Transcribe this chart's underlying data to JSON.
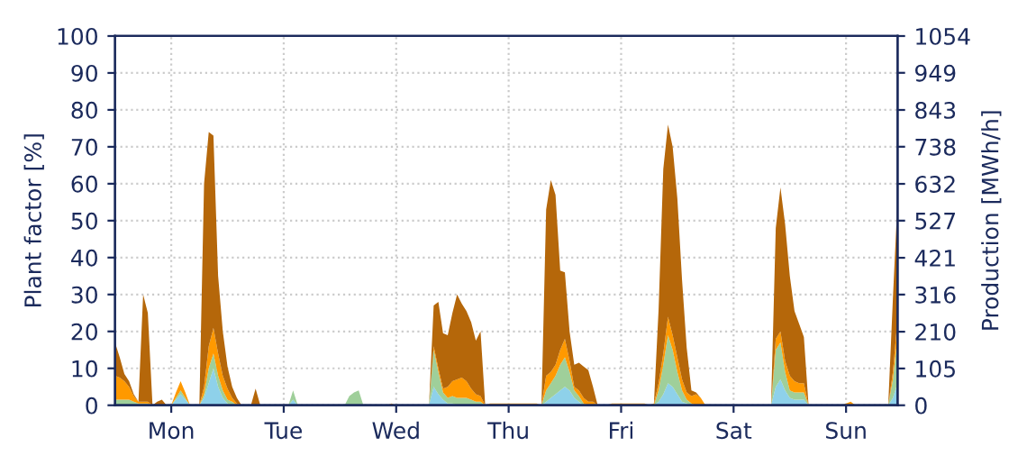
{
  "chart_data": {
    "type": "area",
    "stacked": true,
    "ylabel": "Plant factor [%]",
    "y2label": "Production [MWh/h]",
    "categories": [
      null,
      null,
      null,
      null,
      null,
      null,
      null,
      null,
      null,
      null,
      null,
      null,
      "Mon",
      null,
      null,
      null,
      null,
      null,
      null,
      null,
      null,
      null,
      null,
      null,
      null,
      null,
      null,
      null,
      null,
      null,
      null,
      null,
      null,
      null,
      null,
      null,
      "Tue",
      null,
      null,
      null,
      null,
      null,
      null,
      null,
      null,
      null,
      null,
      null,
      null,
      null,
      null,
      null,
      null,
      null,
      null,
      null,
      null,
      null,
      null,
      null,
      "Wed",
      null,
      null,
      null,
      null,
      null,
      null,
      null,
      null,
      null,
      null,
      null,
      null,
      null,
      null,
      null,
      null,
      null,
      null,
      null,
      null,
      null,
      null,
      null,
      "Thu",
      null,
      null,
      null,
      null,
      null,
      null,
      null,
      null,
      null,
      null,
      null,
      null,
      null,
      null,
      null,
      null,
      null,
      null,
      null,
      null,
      null,
      null,
      null,
      "Fri",
      null,
      null,
      null,
      null,
      null,
      null,
      null,
      null,
      null,
      null,
      null,
      null,
      null,
      null,
      null,
      null,
      null,
      null,
      null,
      null,
      null,
      null,
      null,
      "Sat",
      null,
      null,
      null,
      null,
      null,
      null,
      null,
      null,
      null,
      null,
      null,
      null,
      null,
      null,
      null,
      null,
      null,
      null,
      null,
      null,
      null,
      null,
      null,
      "Sun",
      null,
      null,
      null,
      null,
      null,
      null,
      null,
      null,
      null,
      null,
      null
    ],
    "series": [
      {
        "color": "#8ed1ea",
        "values": [
          0,
          0,
          0,
          0,
          0,
          0,
          0,
          0,
          0,
          0,
          0,
          0,
          0,
          1.5,
          3,
          1.5,
          0,
          0,
          0,
          2,
          6,
          10,
          5,
          2,
          0.5,
          0,
          0,
          0,
          0,
          0,
          0,
          0,
          0,
          0,
          0,
          0,
          0,
          0,
          1.5,
          0,
          0,
          0,
          0,
          0,
          0,
          0,
          0,
          0,
          0,
          0,
          0,
          0,
          0,
          0,
          0,
          0,
          0,
          0,
          0,
          0,
          0,
          0,
          0,
          0,
          0,
          0,
          0,
          0,
          5,
          3,
          1.5,
          0.5,
          0.5,
          0,
          0,
          0,
          0,
          0,
          0,
          0,
          0,
          0,
          0,
          0,
          0,
          0,
          0,
          0,
          0,
          0,
          0,
          0,
          1,
          2,
          3,
          4,
          5,
          4,
          2,
          1,
          0,
          0,
          0,
          0,
          0,
          0,
          0,
          0,
          0,
          0,
          0,
          0,
          0,
          0,
          0,
          0,
          1,
          3,
          6,
          5,
          3,
          1,
          0.5,
          0,
          0,
          0,
          0,
          0,
          0,
          0,
          0,
          0,
          0,
          0,
          0,
          0,
          0,
          0,
          0,
          0,
          0,
          5,
          7,
          4,
          2,
          1.5,
          1.5,
          1.5,
          0,
          0,
          0,
          0,
          0,
          0,
          0,
          0,
          0,
          0,
          0,
          0,
          0,
          0,
          0,
          0,
          0,
          0,
          2,
          6
        ]
      },
      {
        "color": "#9fcf9a",
        "values": [
          1.5,
          1.5,
          1.5,
          1.5,
          1,
          0.5,
          0.5,
          0.5,
          0,
          0,
          0,
          0,
          0,
          0.5,
          1,
          0.5,
          0,
          0,
          0,
          1,
          4,
          4,
          3,
          2,
          1,
          1,
          0,
          0,
          0,
          0,
          0,
          0,
          0,
          0,
          0,
          0,
          0,
          0,
          2.5,
          0,
          0,
          0,
          0,
          0,
          0,
          0,
          0,
          0,
          0,
          0,
          2.5,
          3.5,
          4,
          0,
          0,
          0,
          0,
          0,
          0,
          0,
          0,
          0,
          0,
          0,
          0,
          0,
          0,
          0,
          10,
          6,
          2,
          1.5,
          2,
          2,
          2,
          2,
          1.5,
          1,
          1,
          0,
          0,
          0,
          0,
          0,
          0,
          0,
          0,
          0,
          0,
          0,
          0,
          0,
          3,
          4,
          5,
          7,
          8,
          5,
          2,
          1.5,
          0.5,
          0,
          0,
          0,
          0,
          0,
          0,
          0,
          0,
          0,
          0,
          0,
          0,
          0,
          0,
          0,
          3,
          8,
          13,
          10,
          6,
          3,
          1,
          0.5,
          0,
          0,
          0,
          0,
          0,
          0,
          0,
          0,
          0,
          0,
          0,
          0,
          0,
          0,
          0,
          0,
          0,
          10,
          10,
          5,
          2,
          2,
          2,
          2,
          0,
          0,
          0,
          0,
          0,
          0,
          0,
          0,
          0,
          0,
          0,
          0,
          0,
          0,
          0,
          0,
          0,
          0,
          5,
          12.5
        ]
      },
      {
        "color": "#ff9900",
        "values": [
          6.5,
          6,
          5,
          3.5,
          1.5,
          0.5,
          0.5,
          0.5,
          0,
          0,
          0,
          0,
          0,
          1.5,
          2.5,
          1.5,
          0,
          0,
          0,
          2,
          6,
          7,
          6,
          4,
          3,
          1,
          0.5,
          0,
          0,
          0,
          0,
          0,
          0,
          0,
          0,
          0,
          0,
          0,
          0,
          0,
          0,
          0,
          0,
          0,
          0,
          0,
          0,
          0,
          0,
          0,
          0,
          0,
          0,
          0,
          0,
          0,
          0,
          0,
          0,
          0.5,
          0,
          0,
          0,
          0,
          0,
          0,
          0,
          0,
          1,
          1,
          1,
          3,
          4,
          5,
          5.5,
          4.5,
          3,
          2,
          1.5,
          0,
          0.5,
          0.5,
          0.5,
          0.5,
          0.5,
          0.5,
          0.5,
          0.5,
          0.5,
          0.5,
          0.5,
          0,
          4,
          3,
          3,
          4,
          5,
          3,
          1,
          1.5,
          1.5,
          1,
          1,
          0,
          0,
          0,
          0.5,
          0.5,
          0.5,
          0.5,
          0.5,
          0.5,
          0.5,
          0.5,
          0,
          0.5,
          2,
          3,
          5,
          4,
          4,
          3,
          2,
          2,
          3,
          2,
          0,
          0,
          0,
          0,
          0,
          0,
          0,
          0,
          0,
          0,
          0,
          0,
          0,
          0,
          0,
          3,
          3,
          3,
          4,
          3,
          2.5,
          2.5,
          0,
          0,
          0,
          0,
          0,
          0,
          0,
          0,
          0.5,
          1,
          0,
          0,
          0,
          0,
          0,
          0,
          0,
          0,
          2,
          5
        ]
      },
      {
        "color": "#b5670a",
        "values": [
          9,
          5.5,
          2,
          1.5,
          0.5,
          0,
          29,
          24,
          0,
          1,
          1.5,
          0,
          0,
          0,
          0,
          0,
          0,
          0,
          0,
          55,
          58,
          52,
          21,
          12,
          6,
          3,
          1.5,
          0,
          0,
          0,
          4.5,
          0,
          0,
          0,
          0,
          0,
          0,
          0,
          0,
          0,
          0,
          0,
          0,
          0,
          0,
          0,
          0,
          0,
          0,
          0,
          0,
          0,
          0,
          0,
          0,
          0,
          0,
          0,
          0,
          0,
          0,
          0,
          0,
          0,
          0,
          0,
          0,
          0,
          11,
          18,
          15,
          14,
          18.5,
          23,
          20,
          19,
          18,
          14.5,
          17.5,
          0,
          0,
          0,
          0,
          0,
          0,
          0,
          0,
          0,
          0,
          0,
          0,
          0,
          45,
          52,
          46,
          21.5,
          18,
          8,
          6,
          7.5,
          8.5,
          8.5,
          4,
          0,
          0,
          0,
          0,
          0,
          0,
          0,
          0,
          0,
          0,
          0,
          0,
          0,
          20,
          50,
          52,
          51,
          43,
          27,
          12,
          1.5,
          0.5,
          0,
          0,
          0,
          0,
          0,
          0,
          0,
          0,
          0,
          0,
          0,
          0,
          0,
          0,
          0,
          0,
          30,
          39,
          37,
          27,
          19,
          16,
          12.5,
          0,
          0,
          0,
          0,
          0,
          0,
          0,
          0,
          0,
          0,
          0,
          0,
          0,
          0,
          0,
          0,
          0,
          0,
          20,
          32.5
        ]
      }
    ],
    "ylim": [
      0,
      100
    ],
    "yticks": [
      0,
      10,
      20,
      30,
      40,
      50,
      60,
      70,
      80,
      90,
      100
    ],
    "y2lim": [
      0,
      1054
    ],
    "y2ticks": [
      0,
      105,
      210,
      316,
      421,
      527,
      632,
      738,
      843,
      949,
      1054
    ],
    "grid": true,
    "legend": false
  }
}
